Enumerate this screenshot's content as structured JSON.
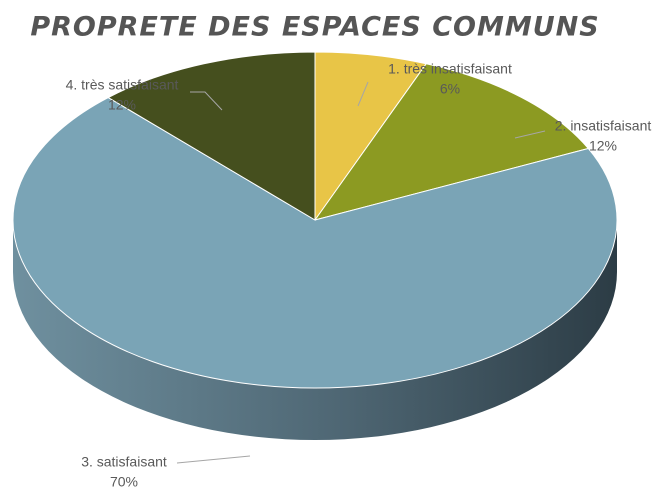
{
  "chart_data": {
    "type": "pie",
    "title": "PROPRETE DES ESPACES COMMUNS",
    "categories": [
      "1. très insatisfaisant",
      "2. insatisfaisant",
      "3. satisfaisant",
      "4. très satisfaisant"
    ],
    "values": [
      6,
      12,
      70,
      12
    ],
    "value_labels": [
      "6%",
      "12%",
      "70%",
      "12%"
    ],
    "colors": [
      "#e8c547",
      "#8c9a22",
      "#7aa4b6",
      "#454f1e"
    ]
  }
}
